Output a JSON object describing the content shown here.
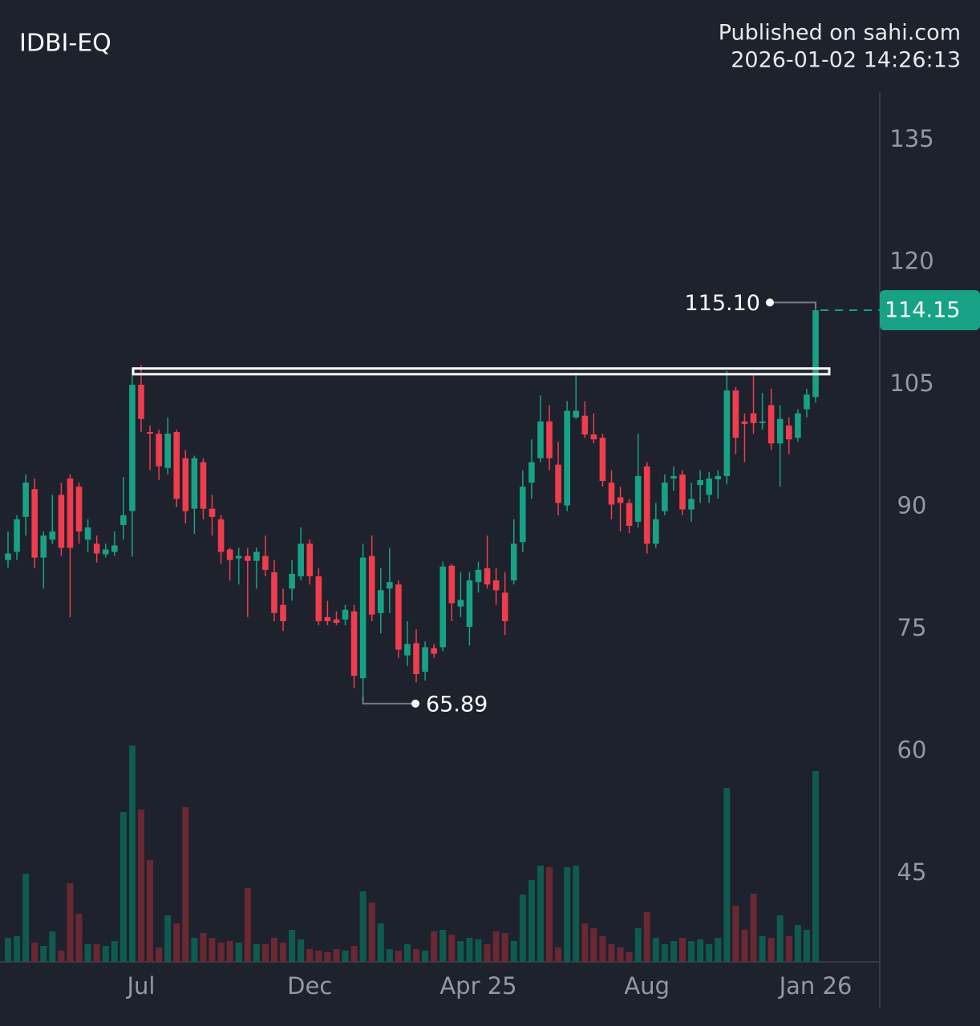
{
  "chart_data": {
    "type": "candlestick",
    "title": "IDBI-EQ",
    "publisher": "Published on sahi.com",
    "timestamp": "2026-01-02 14:26:13",
    "categories": [
      null,
      null,
      null,
      null,
      null,
      null,
      null,
      null,
      null,
      null,
      null,
      null,
      null,
      null,
      null,
      "Jul",
      null,
      null,
      null,
      null,
      null,
      null,
      null,
      null,
      null,
      null,
      null,
      null,
      null,
      null,
      null,
      null,
      null,
      null,
      "Dec",
      null,
      null,
      null,
      null,
      null,
      null,
      null,
      null,
      null,
      null,
      null,
      null,
      null,
      null,
      null,
      null,
      null,
      null,
      "Apr 25",
      null,
      null,
      null,
      null,
      null,
      null,
      null,
      null,
      null,
      null,
      null,
      null,
      null,
      null,
      null,
      null,
      null,
      null,
      "Aug",
      null,
      null,
      null,
      null,
      null,
      null,
      null,
      null,
      null,
      null,
      null,
      null,
      null,
      null,
      null,
      null,
      null,
      null,
      "Jan 26"
    ],
    "open": [
      83.5,
      84.5,
      88.8,
      92.2,
      83.8,
      86,
      91.5,
      93.5,
      92.5,
      86,
      85.5,
      84.2,
      84.5,
      87.8,
      89.5,
      105,
      99.2,
      99,
      94.8,
      99.2,
      96,
      89.8,
      95.5,
      89.8,
      88.5,
      84.8,
      83.7,
      84,
      83.4,
      84,
      82,
      78,
      80,
      81.5,
      85.5,
      81.5,
      76.5,
      76.2,
      76.2,
      77.2,
      69,
      84,
      77,
      80,
      80.5,
      71.8,
      73.3,
      69.8,
      72.7,
      72.8,
      82.8,
      77.8,
      75.3,
      80.8,
      82.5,
      81,
      79.5,
      81,
      85.7,
      93,
      96,
      100.5,
      95.2,
      90.2,
      101,
      101.2,
      98.9,
      98.5,
      93,
      91.2,
      90.5,
      88.2,
      95,
      85.5,
      89.5,
      93.5,
      94,
      89.7,
      92.7,
      91.5,
      93.4,
      93.8,
      104.3,
      100.5,
      101.5,
      100.3,
      102.5,
      97.8,
      100,
      98.5,
      102,
      103.5
    ],
    "high": [
      87,
      89,
      94,
      93.5,
      87,
      91.5,
      93,
      94,
      93,
      88.5,
      86.5,
      85.5,
      87,
      93.7,
      106.3,
      107.4,
      100,
      99.5,
      101,
      99.5,
      97,
      96.3,
      96,
      91.5,
      89,
      85,
      85,
      85,
      85,
      86.5,
      83.5,
      80,
      83.5,
      87.5,
      86,
      82.5,
      78.5,
      77.2,
      78,
      78,
      85.5,
      86.5,
      82.5,
      85,
      81,
      76,
      75,
      73.5,
      73.2,
      83.3,
      83,
      82,
      82,
      83.3,
      86.5,
      82.5,
      82,
      88.5,
      94.5,
      98.3,
      103.7,
      102.5,
      98,
      103,
      106.5,
      103,
      101.5,
      99,
      94.5,
      92.5,
      91,
      99,
      95.5,
      90.5,
      94,
      95,
      94.5,
      93,
      94.5,
      94.3,
      94.5,
      106.7,
      104.7,
      101.5,
      106.3,
      104,
      104.5,
      102.5,
      101,
      102,
      104.5,
      115.1
    ],
    "low": [
      82.5,
      83.5,
      86.5,
      82.5,
      80,
      85.5,
      84,
      76.5,
      85.5,
      84.5,
      83.2,
      83.8,
      84,
      86,
      83.9,
      99.2,
      94.5,
      93.3,
      94,
      90,
      88,
      86.7,
      88.5,
      86.5,
      83,
      81,
      80.5,
      76.5,
      80,
      81.5,
      76,
      74.8,
      78.5,
      81,
      80.5,
      75.5,
      75.5,
      75.5,
      75.5,
      67.8,
      65.89,
      76,
      74.5,
      77,
      71.5,
      70.5,
      68.5,
      68.7,
      71.5,
      72.3,
      76,
      76.5,
      73,
      79.5,
      80,
      78,
      74.3,
      80.5,
      84.5,
      91,
      95.5,
      94.5,
      89,
      89.5,
      100.8,
      98.5,
      97.8,
      92.5,
      88.5,
      87,
      86.8,
      87.5,
      84.3,
      85,
      89,
      92,
      89,
      88.2,
      90.5,
      90.5,
      91,
      92.8,
      96.5,
      95.5,
      99,
      99.5,
      97,
      92.5,
      96.5,
      98,
      101,
      102.8
    ],
    "close": [
      84.3,
      88.5,
      93,
      83.8,
      86.5,
      87,
      85,
      85,
      87,
      87.5,
      84.3,
      84.8,
      85.3,
      89,
      105,
      100.8,
      99,
      95,
      99,
      91,
      89.5,
      96,
      89.8,
      88.8,
      84.5,
      83.5,
      84,
      83.4,
      84.5,
      82.3,
      77,
      76,
      81.8,
      85.5,
      81.5,
      76,
      76,
      75.8,
      77.4,
      69.3,
      83.8,
      76.8,
      79.8,
      80.8,
      72.5,
      73.2,
      69.5,
      72.8,
      72,
      82.7,
      78.2,
      78.6,
      81,
      82.3,
      80.5,
      79.8,
      76,
      85.5,
      92.5,
      95.5,
      100.5,
      96,
      90.5,
      101.8,
      101.8,
      98.9,
      98.3,
      93.2,
      90.3,
      90.5,
      87.7,
      93.8,
      85.5,
      88.5,
      93,
      93.8,
      89.7,
      91,
      93.3,
      93.5,
      93.8,
      104.3,
      98.5,
      100.2,
      100.3,
      100.5,
      97.8,
      100.8,
      98.3,
      101.5,
      103.8,
      114.15
    ],
    "volume": [
      30,
      32,
      110,
      24,
      20,
      38,
      14,
      98,
      60,
      22,
      22,
      20,
      26,
      187,
      270,
      190,
      127,
      18,
      58,
      48,
      193,
      30,
      36,
      30,
      24,
      26,
      24,
      92,
      22,
      22,
      30,
      24,
      40,
      28,
      16,
      14,
      12,
      16,
      14,
      20,
      88,
      74,
      48,
      16,
      14,
      22,
      16,
      14,
      38,
      40,
      34,
      26,
      30,
      28,
      22,
      38,
      36,
      26,
      84,
      102,
      120,
      118,
      18,
      118,
      120,
      48,
      42,
      32,
      22,
      18,
      12,
      42,
      62,
      30,
      22,
      26,
      30,
      26,
      28,
      22,
      30,
      217,
      70,
      40,
      85,
      32,
      30,
      58,
      32,
      46,
      40,
      238
    ],
    "up_color": "#17a286",
    "down_color": "#ef3d4e",
    "volume_up_color": "#0f5b4f",
    "volume_down_color": "#6a2833",
    "ylim": [
      34.2,
      140.9
    ],
    "yticks": [
      45,
      60,
      75,
      90,
      105,
      120,
      135
    ],
    "highlight_box": [
      106.3,
      107.0
    ],
    "max_label": {
      "value": 115.1,
      "label": "115.10"
    },
    "min_label": 65.89,
    "last_price": 114.15
  }
}
